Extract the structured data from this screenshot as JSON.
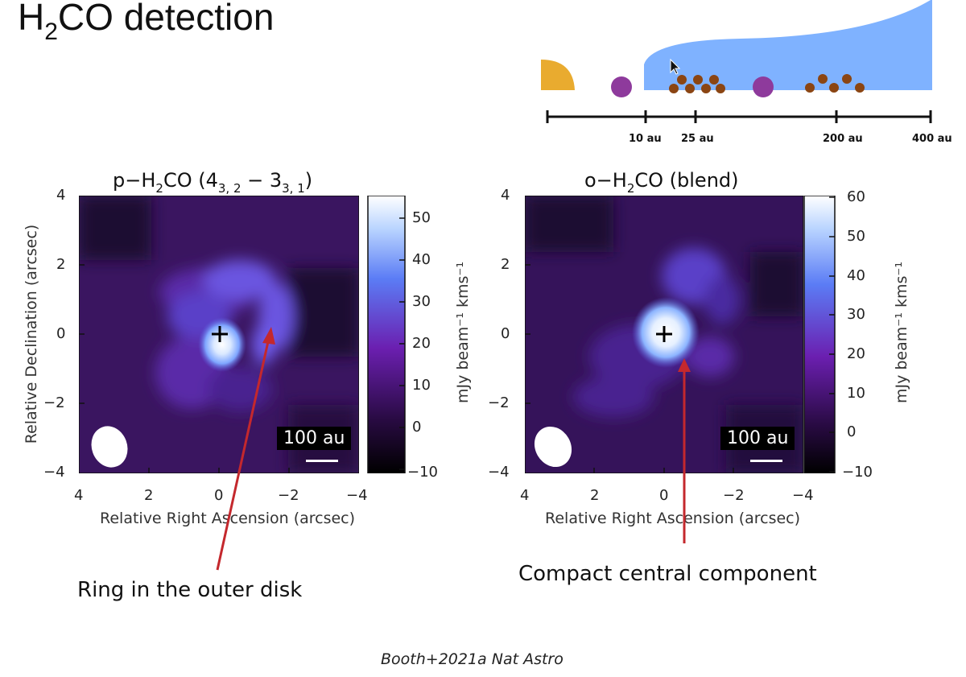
{
  "title": {
    "main_a": "H",
    "main_sub": "2",
    "main_b": "CO detection"
  },
  "schematic": {
    "scale_labels": [
      "10 au",
      "25 au",
      "200 au",
      "400 au"
    ],
    "colors": {
      "star": "#e9ab2f",
      "planet": "#8e3a9c",
      "grain": "#8b4513",
      "gas": "#7fb2ff",
      "axis": "#111111"
    }
  },
  "panel_left": {
    "title_prefix": "p−H",
    "title_sub": "2",
    "title_mid": "CO (4",
    "title_sub2": "3, 2",
    "title_mid2": " − 3",
    "title_sub3": "3, 1",
    "title_end": ")",
    "y_ticks": [
      "4",
      "2",
      "0",
      "−2",
      "−4"
    ],
    "x_ticks": [
      "4",
      "2",
      "0",
      "−2",
      "−4"
    ],
    "ylabel": "Relative Declination (arcsec)",
    "xlabel": "Relative Right Ascension (arcsec)",
    "cbar_ticks": [
      "50",
      "40",
      "30",
      "20",
      "10",
      "0",
      "−10"
    ],
    "cbar_label": "mJy beam⁻¹ kms⁻¹",
    "scale_bar": "100 au"
  },
  "panel_right": {
    "title_prefix": "o−H",
    "title_sub": "2",
    "title_end": "CO (blend)",
    "y_ticks": [
      "4",
      "2",
      "0",
      "−2",
      "−4"
    ],
    "x_ticks": [
      "4",
      "2",
      "0",
      "−2",
      "−4"
    ],
    "xlabel": "Relative Right Ascension (arcsec)",
    "cbar_ticks": [
      "60",
      "50",
      "40",
      "30",
      "20",
      "10",
      "0",
      "−10"
    ],
    "cbar_label": "mJy beam⁻¹ kms⁻¹",
    "scale_bar": "100 au"
  },
  "annotations": {
    "left": "Ring in the outer disk",
    "right": "Compact central component"
  },
  "citation": "Booth+2021a Nat Astro"
}
